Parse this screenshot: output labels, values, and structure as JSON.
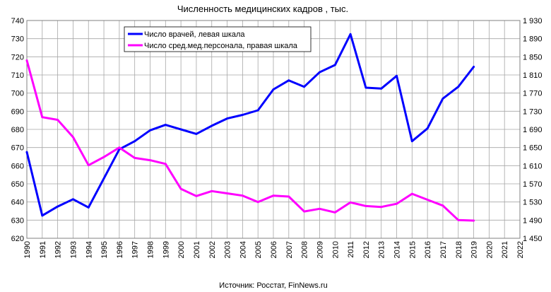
{
  "chart_data": {
    "type": "line",
    "title": "Численность медицинских кадров , тыс.",
    "source": "Источник: Росстат, FinNews.ru",
    "x": [
      1990,
      1991,
      1992,
      1993,
      1994,
      1995,
      1996,
      1997,
      1998,
      1999,
      2000,
      2001,
      2002,
      2003,
      2004,
      2005,
      2006,
      2007,
      2008,
      2009,
      2010,
      2011,
      2012,
      2013,
      2014,
      2015,
      2016,
      2017,
      2018,
      2019,
      2020,
      2021,
      2022
    ],
    "x_ticks": [
      "1990",
      "1991",
      "1992",
      "1993",
      "1994",
      "1995",
      "1996",
      "1997",
      "1998",
      "1999",
      "2000",
      "2001",
      "2002",
      "2003",
      "2004",
      "2005",
      "2006",
      "2007",
      "2008",
      "2009",
      "2010",
      "2011",
      "2012",
      "2013",
      "2014",
      "2015",
      "2016",
      "2017",
      "2018",
      "2019",
      "2020",
      "2021",
      "2022"
    ],
    "ylim_left": [
      620,
      740
    ],
    "y_ticks_left": [
      "620",
      "630",
      "640",
      "650",
      "660",
      "670",
      "680",
      "690",
      "700",
      "710",
      "720",
      "730",
      "740"
    ],
    "ylim_right": [
      1450,
      1930
    ],
    "y_ticks_right": [
      "1 450",
      "1 490",
      "1 530",
      "1 570",
      "1 610",
      "1 650",
      "1 690",
      "1 730",
      "1 770",
      "1 810",
      "1 850",
      "1 890",
      "1 930"
    ],
    "grid": true,
    "legend_position": "top-center",
    "series": [
      {
        "name": "Число врачей, левая шкала",
        "axis": "left",
        "color": "#0000ff",
        "x": [
          1990,
          1991,
          1992,
          1993,
          1994,
          1995,
          1996,
          1997,
          1998,
          1999,
          2000,
          2001,
          2002,
          2003,
          2004,
          2005,
          2006,
          2007,
          2008,
          2009,
          2010,
          2011,
          2012,
          2013,
          2014,
          2015,
          2016,
          2017,
          2018,
          2019
        ],
        "values": [
          667.5,
          632.5,
          637.5,
          641.5,
          637,
          653,
          669,
          673.5,
          679.5,
          682.5,
          680,
          677.5,
          682,
          686,
          688,
          690.5,
          702,
          707,
          703.5,
          711.5,
          715.5,
          732.5,
          703,
          702.5,
          709.5,
          673.5,
          680.5,
          697,
          703.5,
          714.5
        ]
      },
      {
        "name": "Число сред.мед.персонала, правая шкала",
        "axis": "right",
        "color": "#ff00ff",
        "x": [
          1990,
          1991,
          1992,
          1993,
          1994,
          1995,
          1996,
          1997,
          1998,
          1999,
          2000,
          2001,
          2002,
          2003,
          2004,
          2005,
          2006,
          2007,
          2008,
          2009,
          2010,
          2011,
          2012,
          2013,
          2014,
          2015,
          2016,
          2017,
          2018,
          2019
        ],
        "values": [
          1842,
          1717,
          1711,
          1673,
          1611,
          1629,
          1650,
          1627,
          1622,
          1614,
          1559,
          1543,
          1554,
          1549,
          1544,
          1530,
          1544,
          1542,
          1509,
          1515,
          1507,
          1529,
          1521,
          1519,
          1526,
          1548,
          1535,
          1522,
          1490,
          1489
        ]
      }
    ]
  }
}
